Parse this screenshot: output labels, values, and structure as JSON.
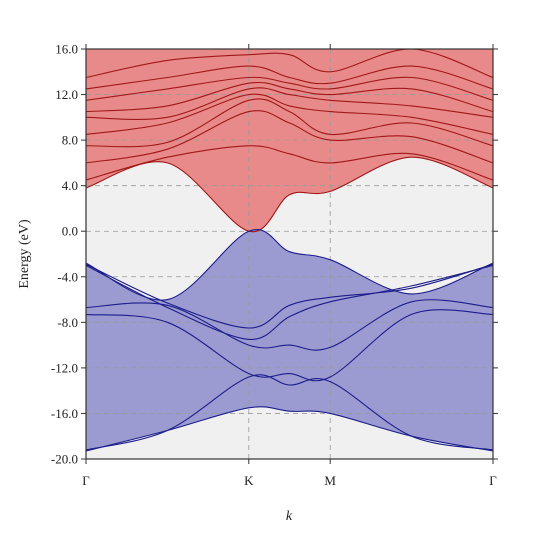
{
  "chart_data": {
    "type": "line",
    "title": "",
    "xlabel": "k",
    "ylabel": "Energy (eV)",
    "ylim": [
      -20,
      16
    ],
    "yticks": [
      -20,
      -16,
      -12,
      -8,
      -4,
      0,
      4,
      8,
      12,
      16
    ],
    "ytick_labels": [
      "-20.0",
      "-16.0",
      "-12.0",
      "-8.0",
      "-4.0",
      "0.0",
      "4.0",
      "8.0",
      "12.0",
      "16.0"
    ],
    "xticks": [
      {
        "label": "Γ",
        "pos": 0
      },
      {
        "label": "K",
        "pos": 1
      },
      {
        "label": "M",
        "pos": 1.5
      },
      {
        "label": "Γ",
        "pos": 2.5
      }
    ],
    "grid": "dashed at high-symmetry points and major y ticks",
    "background_gap_color": "#f0f0f0",
    "colors": {
      "conduction_fill": "#e88a8a",
      "conduction_line": "#a01818",
      "valence_fill": "#9b9bd1",
      "valence_line": "#1c1c8c"
    },
    "conduction_bands": [
      {
        "x": [
          0,
          0.5,
          1.0,
          1.25,
          1.5,
          2.0,
          2.5
        ],
        "y": [
          3.8,
          6.0,
          0.0,
          3.2,
          3.5,
          6.5,
          3.8
        ]
      },
      {
        "x": [
          0,
          0.5,
          1.0,
          1.25,
          1.5,
          2.0,
          2.5
        ],
        "y": [
          4.5,
          6.5,
          7.5,
          6.8,
          6.0,
          6.8,
          4.5
        ]
      },
      {
        "x": [
          0,
          0.5,
          1.0,
          1.25,
          1.5,
          2.0,
          2.5
        ],
        "y": [
          6.0,
          7.2,
          10.5,
          9.5,
          8.0,
          8.3,
          6.0
        ]
      },
      {
        "x": [
          0,
          0.5,
          1.0,
          1.25,
          1.5,
          2.0,
          2.5
        ],
        "y": [
          7.5,
          7.8,
          11.5,
          10.5,
          8.5,
          9.5,
          7.5
        ]
      },
      {
        "x": [
          0,
          0.5,
          1.0,
          1.25,
          1.5,
          2.0,
          2.5
        ],
        "y": [
          8.5,
          9.5,
          12.0,
          11.0,
          10.5,
          10.0,
          8.5
        ]
      },
      {
        "x": [
          0,
          0.5,
          1.0,
          1.25,
          1.5,
          2.0,
          2.5
        ],
        "y": [
          10.0,
          10.0,
          12.5,
          12.0,
          11.5,
          11.0,
          10.0
        ]
      },
      {
        "x": [
          0,
          0.5,
          1.0,
          1.25,
          1.5,
          2.0,
          2.5
        ],
        "y": [
          10.5,
          11.0,
          13.0,
          12.5,
          12.0,
          12.5,
          10.5
        ]
      },
      {
        "x": [
          0,
          0.5,
          1.0,
          1.25,
          1.5,
          2.0,
          2.5
        ],
        "y": [
          11.5,
          12.5,
          13.5,
          13.0,
          12.5,
          13.5,
          11.5
        ]
      },
      {
        "x": [
          0,
          0.5,
          1.0,
          1.25,
          1.5,
          2.0,
          2.5
        ],
        "y": [
          12.5,
          13.5,
          14.5,
          13.5,
          13.0,
          14.5,
          12.5
        ]
      },
      {
        "x": [
          0,
          0.5,
          1.0,
          1.25,
          1.5,
          2.0,
          2.5
        ],
        "y": [
          13.5,
          15.0,
          15.5,
          15.5,
          14.0,
          16.0,
          13.5
        ]
      }
    ],
    "valence_bands": [
      {
        "x": [
          0,
          0.5,
          1.0,
          1.25,
          1.5,
          2.0,
          2.5
        ],
        "y": [
          -2.8,
          -6.0,
          0.0,
          -1.8,
          -2.5,
          -5.5,
          -2.8
        ]
      },
      {
        "x": [
          0,
          0.5,
          1.0,
          1.25,
          1.5,
          2.0,
          2.5
        ],
        "y": [
          -2.9,
          -6.3,
          -8.5,
          -6.5,
          -5.8,
          -5.0,
          -2.9
        ]
      },
      {
        "x": [
          0,
          0.5,
          1.0,
          1.25,
          1.5,
          2.0,
          2.5
        ],
        "y": [
          -3.0,
          -6.7,
          -9.5,
          -7.5,
          -6.2,
          -4.8,
          -3.0
        ]
      },
      {
        "x": [
          0,
          0.5,
          1.0,
          1.25,
          1.5,
          2.0,
          2.5
        ],
        "y": [
          -6.7,
          -6.5,
          -10.0,
          -10.0,
          -10.2,
          -6.2,
          -6.7
        ]
      },
      {
        "x": [
          0,
          0.5,
          1.0,
          1.25,
          1.5,
          2.0,
          2.5
        ],
        "y": [
          -7.3,
          -8.0,
          -12.5,
          -12.5,
          -12.8,
          -7.3,
          -7.3
        ]
      },
      {
        "x": [
          0,
          0.5,
          1.0,
          1.25,
          1.5,
          2.0,
          2.5
        ],
        "y": [
          -19.2,
          -17.5,
          -12.8,
          -13.5,
          -13.2,
          -18.0,
          -19.2
        ]
      },
      {
        "x": [
          0,
          0.5,
          1.0,
          1.25,
          1.5,
          2.0,
          2.5
        ],
        "y": [
          -19.3,
          -17.5,
          -15.5,
          -15.8,
          -16.0,
          -18.0,
          -19.3
        ]
      }
    ]
  }
}
